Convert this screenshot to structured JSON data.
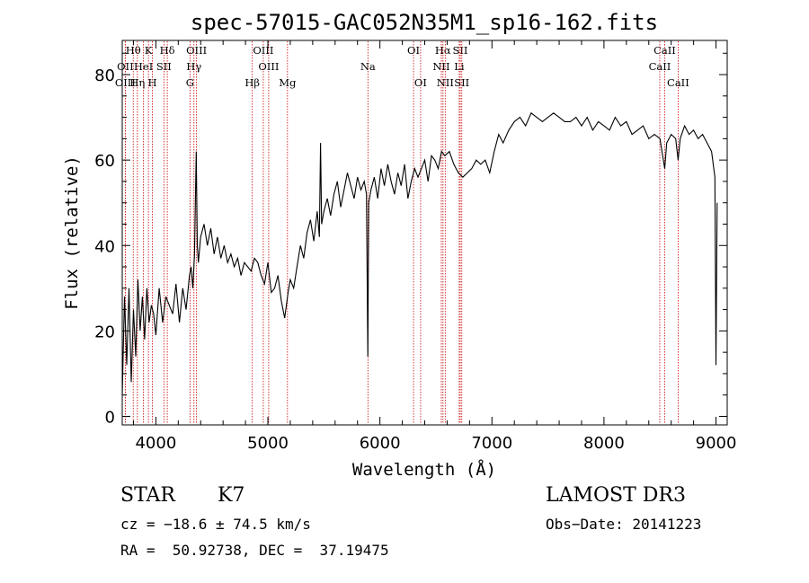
{
  "chart_data": {
    "type": "line",
    "title": "spec-57015-GAC052N35M1_sp16-162.fits",
    "xlabel": "Wavelength (Å)",
    "ylabel": "Flux (relative)",
    "xlim": [
      3700,
      9100
    ],
    "ylim": [
      -2,
      88
    ],
    "x_ticks": [
      4000,
      5000,
      6000,
      7000,
      8000,
      9000
    ],
    "y_ticks": [
      0,
      20,
      40,
      60,
      80
    ],
    "grid": false,
    "series": [
      {
        "name": "flux",
        "x": [
          3700,
          3720,
          3740,
          3760,
          3780,
          3800,
          3820,
          3840,
          3860,
          3880,
          3900,
          3920,
          3940,
          3960,
          3980,
          4000,
          4030,
          4060,
          4090,
          4120,
          4150,
          4180,
          4210,
          4240,
          4270,
          4300,
          4315,
          4330,
          4345,
          4360,
          4370,
          4380,
          4400,
          4430,
          4460,
          4490,
          4520,
          4550,
          4580,
          4610,
          4640,
          4670,
          4700,
          4730,
          4760,
          4790,
          4820,
          4850,
          4880,
          4910,
          4940,
          4970,
          5000,
          5030,
          5060,
          5090,
          5120,
          5150,
          5180,
          5200,
          5230,
          5260,
          5290,
          5320,
          5350,
          5380,
          5410,
          5440,
          5460,
          5470,
          5480,
          5500,
          5530,
          5560,
          5590,
          5620,
          5650,
          5680,
          5710,
          5740,
          5770,
          5800,
          5830,
          5860,
          5880,
          5892,
          5900,
          5920,
          5950,
          5980,
          6010,
          6040,
          6070,
          6100,
          6130,
          6160,
          6190,
          6220,
          6250,
          6280,
          6310,
          6340,
          6370,
          6400,
          6430,
          6460,
          6490,
          6520,
          6550,
          6580,
          6620,
          6660,
          6700,
          6740,
          6780,
          6820,
          6860,
          6900,
          6940,
          6980,
          7020,
          7060,
          7100,
          7150,
          7200,
          7250,
          7300,
          7350,
          7400,
          7450,
          7500,
          7550,
          7600,
          7650,
          7700,
          7750,
          7800,
          7850,
          7900,
          7950,
          8000,
          8050,
          8100,
          8150,
          8200,
          8250,
          8300,
          8350,
          8400,
          8450,
          8500,
          8542,
          8560,
          8600,
          8640,
          8662,
          8680,
          8720,
          8760,
          8800,
          8840,
          8880,
          8920,
          8960,
          8990,
          9000,
          9010
        ],
        "values": [
          5,
          28,
          12,
          30,
          8,
          25,
          14,
          32,
          20,
          28,
          18,
          30,
          22,
          26,
          24,
          19,
          30,
          22,
          28,
          26,
          24,
          31,
          22,
          30,
          25,
          33,
          35,
          30,
          38,
          62,
          40,
          36,
          42,
          45,
          40,
          44,
          38,
          42,
          37,
          40,
          36,
          38,
          35,
          37,
          33,
          36,
          35,
          34,
          37,
          36,
          33,
          31,
          36,
          29,
          30,
          33,
          27,
          23,
          29,
          32,
          30,
          35,
          40,
          37,
          43,
          46,
          41,
          48,
          42,
          64,
          45,
          48,
          51,
          47,
          52,
          55,
          49,
          53,
          57,
          54,
          51,
          56,
          53,
          55,
          52,
          14,
          50,
          53,
          56,
          51,
          58,
          54,
          59,
          55,
          52,
          57,
          54,
          59,
          51,
          55,
          58,
          56,
          58,
          60,
          55,
          61,
          60,
          58,
          62,
          61,
          62,
          59,
          57,
          56,
          57,
          58,
          60,
          59,
          60,
          57,
          62,
          66,
          64,
          67,
          69,
          70,
          68,
          71,
          70,
          69,
          70,
          71,
          70,
          69,
          69,
          70,
          68,
          70,
          67,
          69,
          68,
          67,
          70,
          68,
          69,
          66,
          67,
          68,
          65,
          66,
          65,
          58,
          64,
          66,
          65,
          60,
          65,
          68,
          66,
          67,
          65,
          66,
          64,
          62,
          56,
          12,
          50
        ]
      }
    ],
    "spectral_lines": [
      {
        "name": "Hθ",
        "wavelength": 3798,
        "row": 0
      },
      {
        "name": "OII",
        "wavelength": 3727,
        "row": 1
      },
      {
        "name": "OIII",
        "wavelength": 3727,
        "row": 2
      },
      {
        "name": "K",
        "wavelength": 3934,
        "row": 0
      },
      {
        "name": "HeI",
        "wavelength": 3889,
        "row": 1
      },
      {
        "name": "Hη",
        "wavelength": 3835,
        "row": 2
      },
      {
        "name": "Hδ",
        "wavelength": 4102,
        "row": 0
      },
      {
        "name": "SII",
        "wavelength": 4072,
        "row": 1
      },
      {
        "name": "H",
        "wavelength": 3969,
        "row": 2
      },
      {
        "name": "OIII",
        "wavelength": 4363,
        "row": 0
      },
      {
        "name": "Hγ",
        "wavelength": 4340,
        "row": 1
      },
      {
        "name": "G",
        "wavelength": 4305,
        "row": 2
      },
      {
        "name": "OIII",
        "wavelength": 4959,
        "row": 0
      },
      {
        "name": "OIII",
        "wavelength": 5007,
        "row": 1
      },
      {
        "name": "Hβ",
        "wavelength": 4861,
        "row": 2
      },
      {
        "name": "Mg",
        "wavelength": 5175,
        "row": 2
      },
      {
        "name": "Na",
        "wavelength": 5893,
        "row": 1
      },
      {
        "name": "OI",
        "wavelength": 6300,
        "row": 0
      },
      {
        "name": "OI",
        "wavelength": 6363,
        "row": 2
      },
      {
        "name": "Hα",
        "wavelength": 6563,
        "row": 0
      },
      {
        "name": "NII",
        "wavelength": 6548,
        "row": 1
      },
      {
        "name": "NII",
        "wavelength": 6583,
        "row": 2
      },
      {
        "name": "SII",
        "wavelength": 6717,
        "row": 0
      },
      {
        "name": "Li",
        "wavelength": 6708,
        "row": 1
      },
      {
        "name": "SII",
        "wavelength": 6731,
        "row": 2
      },
      {
        "name": "CaII",
        "wavelength": 8542,
        "row": 0
      },
      {
        "name": "CaII",
        "wavelength": 8498,
        "row": 1
      },
      {
        "name": "CaII",
        "wavelength": 8662,
        "row": 2
      }
    ]
  },
  "info": {
    "class": "STAR",
    "subclass": "K7",
    "survey": "LAMOST DR3",
    "cz": "cz = −18.6 ± 74.5 km/s",
    "obs_date": "Obs−Date: 20141223",
    "coords": "RA =  50.92738, DEC =  37.19475"
  },
  "colors": {
    "line": "#000000",
    "marker": "#cc0000",
    "background": "#ffffff"
  }
}
